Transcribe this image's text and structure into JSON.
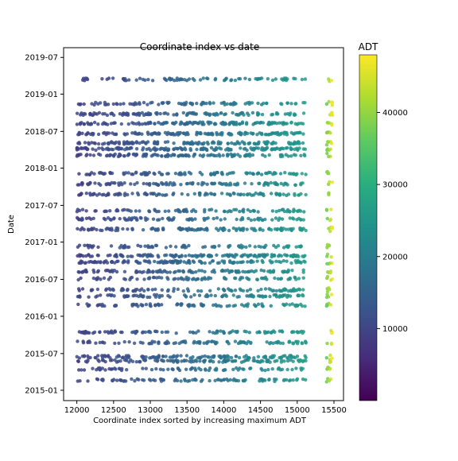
{
  "chart_data": {
    "type": "scatter",
    "title": "Coordinate index vs date",
    "xlabel": "Coordinate index sorted by increasing maximum ADT",
    "ylabel": "Date",
    "xlim": [
      11820,
      15630
    ],
    "ylim": [
      "2014-11-11",
      "2019-08-18"
    ],
    "x_ticks": [
      12000,
      12500,
      13000,
      13500,
      14000,
      14500,
      15000,
      15500
    ],
    "y_ticks": [
      "2015-01",
      "2015-07",
      "2016-01",
      "2016-07",
      "2017-01",
      "2017-07",
      "2018-01",
      "2018-07",
      "2019-01",
      "2019-07"
    ],
    "colorbar": {
      "label": "ADT",
      "range": [
        0,
        48000
      ],
      "ticks": [
        10000,
        20000,
        30000,
        40000
      ],
      "colormap": "viridis"
    },
    "grid": false,
    "x_range_points": [
      12000,
      15480
    ],
    "date_bands": [
      {
        "date": "2015-02-20",
        "n": 90
      },
      {
        "date": "2015-04-15",
        "n": 75
      },
      {
        "date": "2015-05-25",
        "n": 110
      },
      {
        "date": "2015-06-15",
        "n": 120
      },
      {
        "date": "2015-08-25",
        "n": 100
      },
      {
        "date": "2015-10-15",
        "n": 95
      },
      {
        "date": "2016-02-25",
        "n": 90
      },
      {
        "date": "2016-04-10",
        "n": 95
      },
      {
        "date": "2016-05-10",
        "n": 85
      },
      {
        "date": "2016-07-05",
        "n": 80
      },
      {
        "date": "2016-08-10",
        "n": 110
      },
      {
        "date": "2016-09-25",
        "n": 130
      },
      {
        "date": "2016-10-25",
        "n": 140
      },
      {
        "date": "2016-12-10",
        "n": 80
      },
      {
        "date": "2017-03-05",
        "n": 120
      },
      {
        "date": "2017-04-25",
        "n": 90
      },
      {
        "date": "2017-06-05",
        "n": 85
      },
      {
        "date": "2017-08-25",
        "n": 100
      },
      {
        "date": "2017-10-15",
        "n": 110
      },
      {
        "date": "2017-12-05",
        "n": 100
      },
      {
        "date": "2018-03-05",
        "n": 120
      },
      {
        "date": "2018-04-05",
        "n": 140
      },
      {
        "date": "2018-05-05",
        "n": 130
      },
      {
        "date": "2018-06-20",
        "n": 140
      },
      {
        "date": "2018-08-10",
        "n": 140
      },
      {
        "date": "2018-09-25",
        "n": 120
      },
      {
        "date": "2018-11-15",
        "n": 90
      },
      {
        "date": "2019-03-15",
        "n": 80
      }
    ]
  }
}
